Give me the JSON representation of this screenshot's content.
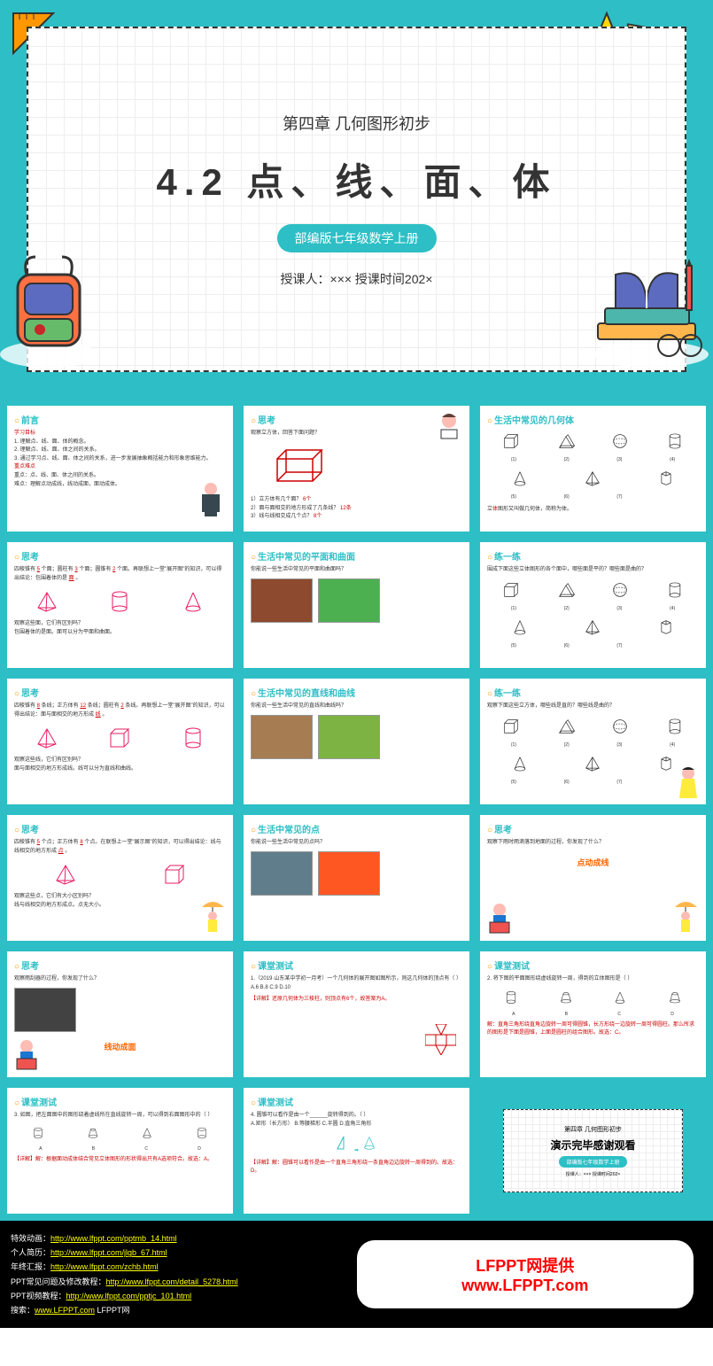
{
  "hero": {
    "chapter": "第四章  几何图形初步",
    "title": "4.2 点、线、面、体",
    "badge": "部编版七年级数学上册",
    "teacher": "授课人：×××   授课时间202×"
  },
  "slides": [
    {
      "title": "前言",
      "lines": [
        {
          "text": "学习目标",
          "red": true
        },
        {
          "text": "1. 理解点、线、面、体的概念。"
        },
        {
          "text": "2. 理解点、线、面、体之间的关系。"
        },
        {
          "text": "3. 通过学习点、线、面、体之间的关系，进一步发展抽象概括能力和形象思维能力。"
        },
        {
          "text": "重点难点",
          "red": true
        },
        {
          "text": "重点：点、线、面、体之间的关系。"
        },
        {
          "text": "难点：理解点动成线，线动成面，面动成体。"
        }
      ],
      "hasTeacher": true
    },
    {
      "title": "思考",
      "question": "观察立方体，回答下面问题？",
      "items": [
        {
          "q": "1）立方体有几个面？",
          "a": "6个"
        },
        {
          "q": "2）面与面相交的地方形成了几条线？",
          "a": "12条"
        },
        {
          "q": "3）线与线相交成几个点？",
          "a": "8个"
        }
      ],
      "hasCuboid": true,
      "hasGirl": true
    },
    {
      "title": "生活中常见的几何体",
      "shapes7": true,
      "bottomText": "立体图形又叫做几何体，简称为体。"
    },
    {
      "title": "思考",
      "fillText": "四棱锥有 5 个面；圆柱有 3 个面；圆锥有 2 个面。再联想上一堂\"展开图\"的知识，可以得出结论：包围着体的是 面 。",
      "shapes3a": true,
      "q2": "观察这些面，它们有区别吗？",
      "a2": "包围着体的是面。面可以分为平面和曲面。"
    },
    {
      "title": "生活中常见的平面和曲面",
      "question": "你能说一些生活中常见的平面和曲面吗？",
      "images": [
        "brick",
        "ball"
      ]
    },
    {
      "title": "练一练",
      "question": "围成下面这些立体图形的各个面中，哪些面是平的？哪些面是曲的？",
      "shapes7": true
    },
    {
      "title": "思考",
      "fillText": "四棱锥有 8 条线；正方体有 12 条线；圆柱有 2 条线。再联想上一堂\"展开图\"的知识，可以得出结论：面与面相交的地方形成 线 。",
      "shapes3b": true,
      "q2": "观察这些线，它们有区别吗？",
      "a2": "面与面相交的地方形成线。线可以分为直线和曲线。"
    },
    {
      "title": "生活中常见的直线和曲线",
      "question": "你能说一些生活中常见的直线和曲线吗？",
      "images": [
        "wood",
        "field"
      ]
    },
    {
      "title": "练一练",
      "question": "观察下面这些立方体，哪些线是直的？哪些线是曲的？",
      "shapes7": true,
      "hasPrincess": true
    },
    {
      "title": "思考",
      "fillText": "四棱锥有 5 个点；正方体有 8 个点。在联想上一堂\"展示图\"的知识，可以得出结论：线与线相交的地方形成 点 。",
      "shapes3c": true,
      "q2": "观察这些点，它们有大小区别吗？",
      "a2": "线与线相交的地方形成点。点无大小。",
      "hasGirlUmbrella": true
    },
    {
      "title": "生活中常见的点",
      "question": "你能说一些生活中常见的点吗？",
      "images": [
        "drops",
        "rubik"
      ]
    },
    {
      "title": "思考",
      "question": "观察下雨时雨滴落到地面的过程，你发现了什么？",
      "bigText": "点动成线",
      "hasReader": true,
      "hasRainGirl": true
    },
    {
      "title": "思考",
      "question": "观察雨刮器的过程，你发现了什么？",
      "bigText": "线动成面",
      "hasReader": true,
      "images": [
        "wiper"
      ]
    },
    {
      "title": "课堂测试",
      "testText": "1.（2019·山东某中学初一月考）一个几何体的展开图如图所示，则这几何体的顶点有（  ）",
      "options": "A.6    B.8    C.9    D.10",
      "answer": "【详解】还原几何体为三棱柱，则顶点有6个，故答案为A。",
      "hasDiagram": true
    },
    {
      "title": "课堂测试",
      "testText": "2. 将下图的平面图形绕虚线旋转一周，得到的立体图形是（  ）",
      "shapesABCD": true,
      "answer": "解：直角三角形绕直角边旋转一周可得圆锥，长方形绕一边旋转一周可得圆柱。那么所求的图形是下面是圆锥，上面是圆柱的组合图形。故选：C。"
    },
    {
      "title": "课堂测试",
      "testText": "3. 如图，把左面图中的图形绕着虚线所在直线旋转一周，可以得到右面图形中的（  ）",
      "shapesABCD2": true,
      "answer": "【详解】解：根据面动成体结合常见立体图形的形状得出只有A选项符合。故选：A。"
    },
    {
      "title": "课堂测试",
      "testText": "4. 圆锥可以看作是由一个______旋转得到的。（  ）",
      "options": "A.矩形（长方形）  B.等腰梯形  C.半圆  D.直角三角形",
      "answer": "【详解】解：圆锥可以看作是由一个直角三角形绕一条直角边边旋转一周得到的。故选：D。",
      "hasConeDemo": true
    },
    {
      "isEnd": true,
      "chapter": "第四章  几何图形初步",
      "endTitle": "演示完毕感谢观看",
      "badge": "部编版七年级数学上册",
      "teacher": "授课人：×××   授课时间202×"
    }
  ],
  "footer": {
    "links": [
      {
        "label": "特效动画：",
        "url": "http://www.lfppt.com/pptmb_14.html"
      },
      {
        "label": "个人简历：",
        "url": "http://www.lfppt.com/jlgb_67.html"
      },
      {
        "label": "年终汇报：",
        "url": "http://www.lfppt.com/zchb.html"
      },
      {
        "label": "PPT常见问题及修改教程：",
        "url": "http://www.lfppt.com/detail_5278.html"
      },
      {
        "label": "PPT视频教程：",
        "url": "http://www.lfppt.com/pptjc_101.html"
      },
      {
        "label": "搜索：",
        "url": "www.LFPPT.com",
        "suffix": "LFPPT网"
      }
    ],
    "brand1": "LFPPT网提供",
    "brand2": "www.LFPPT.com"
  },
  "colors": {
    "primary": "#2dbfc5",
    "accent": "#ff9800",
    "red": "#cc0000"
  }
}
